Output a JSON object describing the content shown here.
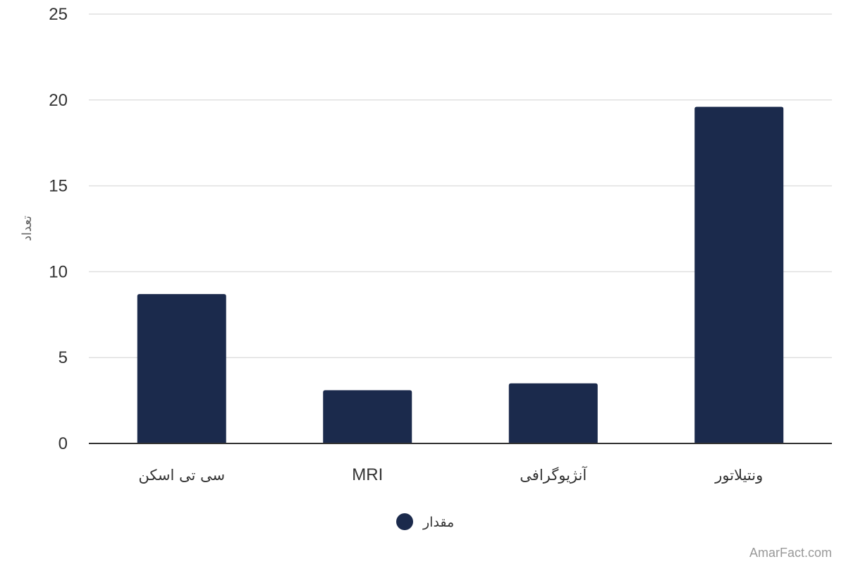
{
  "chart_data": {
    "type": "bar",
    "categories": [
      "سی تی اسکن",
      "MRI",
      "آنژیوگرافی",
      "ونتیلاتور"
    ],
    "series": [
      {
        "name": "مقدار",
        "values": [
          8.7,
          3.1,
          3.5,
          19.6
        ]
      }
    ],
    "ylabel": "تعداد",
    "xlabel": "",
    "ylim": [
      0,
      25
    ],
    "yticks": [
      0,
      5,
      10,
      15,
      20,
      25
    ],
    "grid": true,
    "legend": "bottom-center",
    "bar_color": "#1b2a4c"
  },
  "watermark": "AmarFact.com"
}
